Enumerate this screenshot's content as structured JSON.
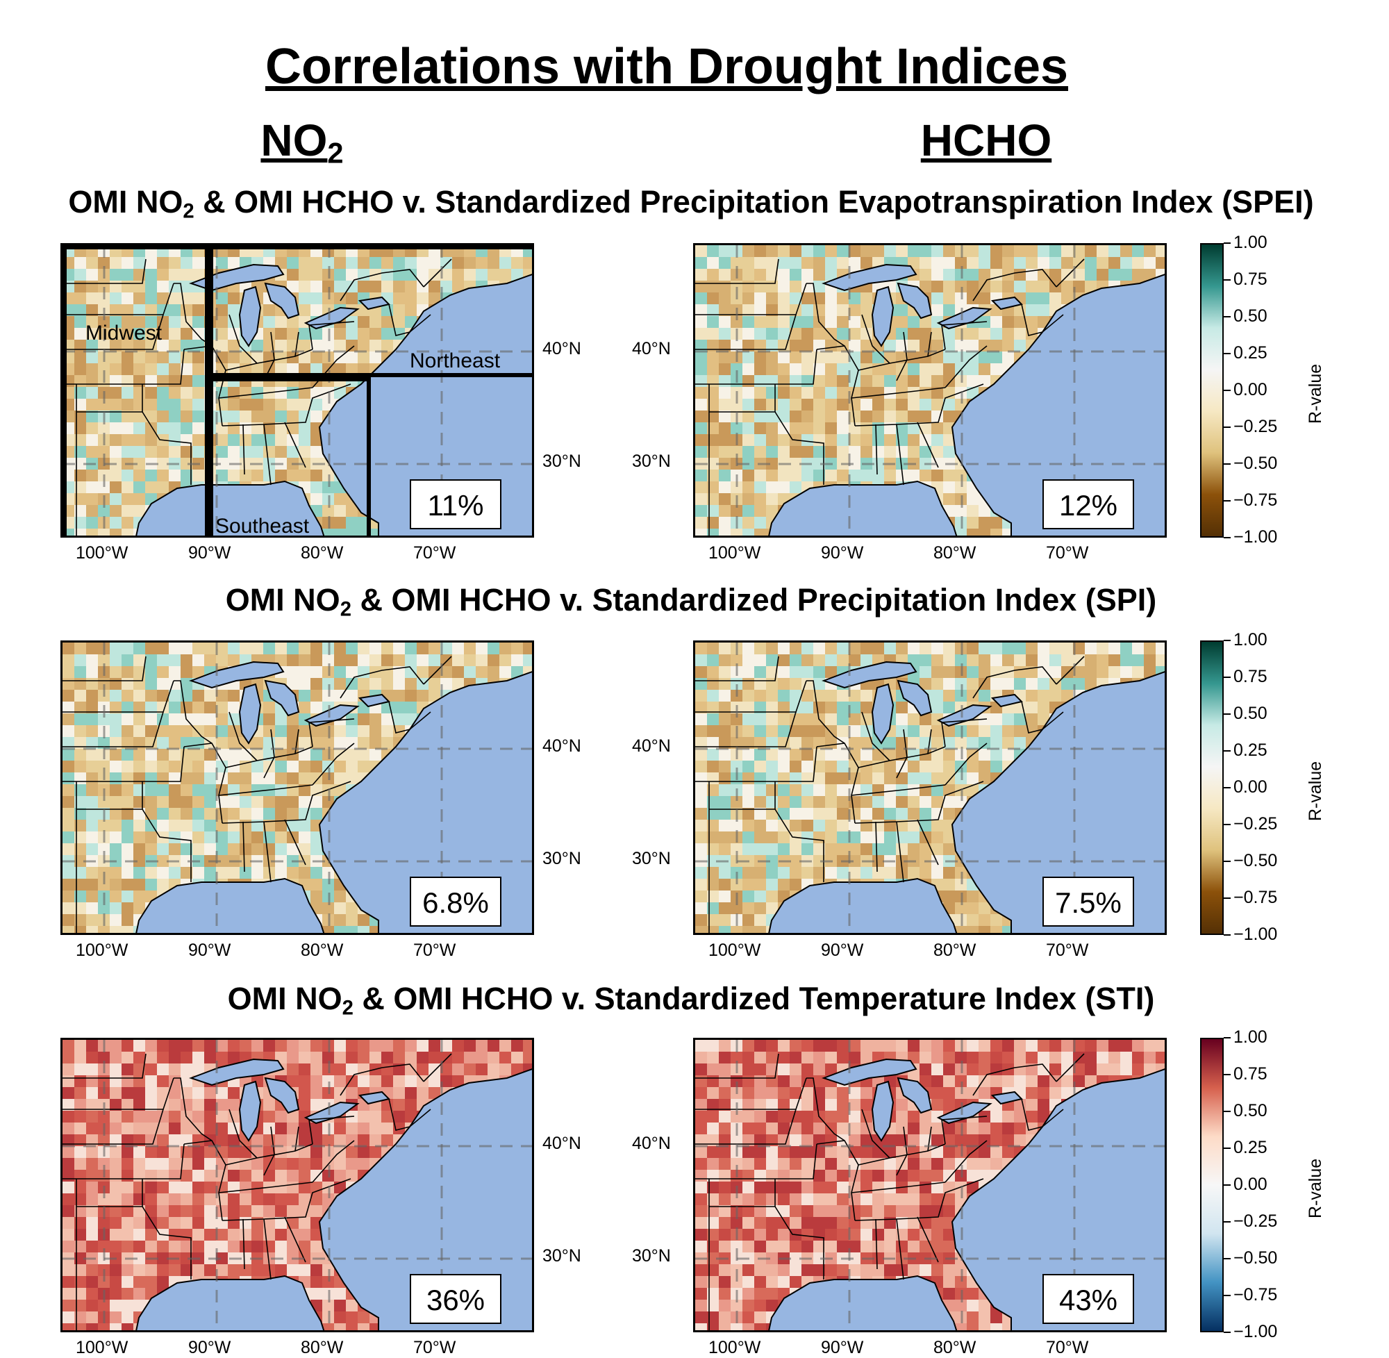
{
  "title": "Correlations with Drought Indices",
  "columns": {
    "left": {
      "main": "NO",
      "sub": "2"
    },
    "right": {
      "main": "HCHO"
    }
  },
  "rows": [
    {
      "title_a": "OMI NO",
      "title_sub": "2",
      "title_b": " & OMI HCHO v. Standardized Precipitation Evapotranspiration Index (SPEI)",
      "left_pct": "11%",
      "right_pct": "12%",
      "palette": "BrBG"
    },
    {
      "title_a": "OMI NO",
      "title_sub": "2",
      "title_b": " & OMI HCHO v. Standardized Precipitation Index (SPI)",
      "left_pct": "6.8%",
      "right_pct": "7.5%",
      "palette": "BrBG"
    },
    {
      "title_a": "OMI NO",
      "title_sub": "2",
      "title_b": " & OMI HCHO v. Standardized Temperature Index (STI)",
      "left_pct": "36%",
      "right_pct": "43%",
      "palette": "RdBu_r"
    }
  ],
  "regions": {
    "midwest": "Midwest",
    "northeast": "Northeast",
    "southeast": "Southeast"
  },
  "lon_ticks": [
    "100°W",
    "90°W",
    "80°W",
    "70°W"
  ],
  "lat_ticks": [
    "40°N",
    "30°N"
  ],
  "colorbar": {
    "label": "R-value",
    "ticks": [
      "1.00",
      "0.75",
      "0.50",
      "0.25",
      "0.00",
      "−0.25",
      "−0.50",
      "−0.75",
      "−1.00"
    ],
    "brbg_colors": [
      "#003c30",
      "#35978f",
      "#c7eae5",
      "#f5f5f5",
      "#f6e8c3",
      "#dfc27d",
      "#8c510a",
      "#543005"
    ],
    "rdbu_colors": [
      "#67001f",
      "#d6604d",
      "#fddbc7",
      "#f7f7f7",
      "#d1e5f0",
      "#4393c3",
      "#053061"
    ]
  },
  "colors": {
    "ocean": "#97b6e1",
    "lakes": "#97b6e1"
  }
}
